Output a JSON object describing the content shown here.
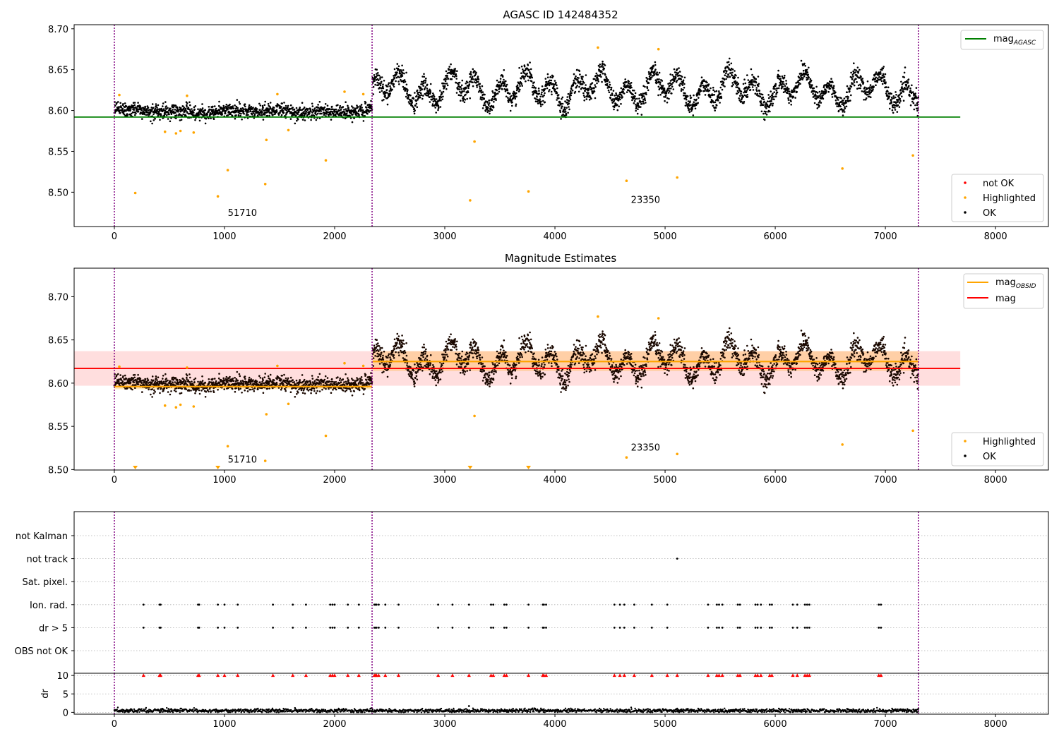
{
  "chart_data": [
    {
      "panel": "top",
      "type": "scatter",
      "title": "AGASC ID 142484352",
      "xlim": [
        -365,
        8480
      ],
      "ylim": [
        8.458,
        8.705
      ],
      "xticks": [
        0,
        1000,
        2000,
        3000,
        4000,
        5000,
        6000,
        7000,
        8000
      ],
      "yticks": [
        8.5,
        8.55,
        8.6,
        8.65,
        8.7
      ],
      "ytick_labels": [
        "8.50",
        "8.55",
        "8.60",
        "8.65",
        "8.70"
      ],
      "obs_boundaries": [
        0,
        2340,
        7300
      ],
      "reference_line": {
        "label": "mag",
        "label_sub": "AGASC",
        "value": 8.592,
        "x_start": -365,
        "x_end": 7680,
        "color": "#008000"
      },
      "segments": [
        {
          "x_start": 0,
          "x_end": 2340,
          "mean": 8.599,
          "noise": 0.0045,
          "wave_amp": 0.002,
          "wave_period": 450
        },
        {
          "x_start": 2345,
          "x_end": 7300,
          "mean": 8.626,
          "noise": 0.006,
          "wave_amp": 0.02,
          "wave_period": 230
        }
      ],
      "highlighted_points": [
        {
          "x": 45,
          "y": 8.619
        },
        {
          "x": 190,
          "y": 8.499
        },
        {
          "x": 460,
          "y": 8.574
        },
        {
          "x": 560,
          "y": 8.572
        },
        {
          "x": 600,
          "y": 8.575
        },
        {
          "x": 660,
          "y": 8.618
        },
        {
          "x": 720,
          "y": 8.573
        },
        {
          "x": 940,
          "y": 8.495
        },
        {
          "x": 1030,
          "y": 8.527
        },
        {
          "x": 1370,
          "y": 8.51
        },
        {
          "x": 1380,
          "y": 8.564
        },
        {
          "x": 1480,
          "y": 8.62
        },
        {
          "x": 1580,
          "y": 8.576
        },
        {
          "x": 1920,
          "y": 8.539
        },
        {
          "x": 2090,
          "y": 8.623
        },
        {
          "x": 2260,
          "y": 8.62
        },
        {
          "x": 3230,
          "y": 8.49
        },
        {
          "x": 3270,
          "y": 8.562
        },
        {
          "x": 3760,
          "y": 8.501
        },
        {
          "x": 4390,
          "y": 8.677
        },
        {
          "x": 4650,
          "y": 8.514
        },
        {
          "x": 4940,
          "y": 8.675
        },
        {
          "x": 5110,
          "y": 8.518
        },
        {
          "x": 6610,
          "y": 8.529
        },
        {
          "x": 7250,
          "y": 8.545
        }
      ],
      "annotations": [
        {
          "text": "51710",
          "x": 1030,
          "y": 8.471
        },
        {
          "text": "23350",
          "x": 4690,
          "y": 8.487
        }
      ],
      "legend_line": {
        "position": "upper right",
        "entries": [
          {
            "label": "mag",
            "sub": "AGASC",
            "color": "#008000"
          }
        ]
      },
      "legend_points": {
        "position": "lower right",
        "entries": [
          {
            "label": "not OK",
            "color": "#ff0000"
          },
          {
            "label": "Highlighted",
            "color": "#ffa500"
          },
          {
            "label": "OK",
            "color": "#000000"
          }
        ]
      }
    },
    {
      "panel": "middle",
      "type": "scatter",
      "title": "Magnitude Estimates",
      "xlim": [
        -365,
        8480
      ],
      "ylim": [
        8.4995,
        8.733
      ],
      "xticks": [
        0,
        1000,
        2000,
        3000,
        4000,
        5000,
        6000,
        7000,
        8000
      ],
      "yticks": [
        8.5,
        8.55,
        8.6,
        8.65,
        8.7
      ],
      "ytick_labels": [
        "8.50",
        "8.55",
        "8.60",
        "8.65",
        "8.70"
      ],
      "obs_boundaries": [
        0,
        2340,
        7300
      ],
      "mag_line": {
        "label": "mag",
        "value": 8.617,
        "band": [
          8.597,
          8.637
        ],
        "x_start": -365,
        "x_end": 7680,
        "color": "#ff0000"
      },
      "obsid_lines": [
        {
          "x_start": 0,
          "x_end": 2340,
          "value": 8.596,
          "band": [
            8.593,
            8.6
          ]
        },
        {
          "x_start": 2345,
          "x_end": 7300,
          "value": 8.625,
          "band": [
            8.614,
            8.637
          ]
        }
      ],
      "highlighted_points": [
        {
          "x": 45,
          "y": 8.619
        },
        {
          "x": 460,
          "y": 8.574
        },
        {
          "x": 560,
          "y": 8.572
        },
        {
          "x": 600,
          "y": 8.575
        },
        {
          "x": 660,
          "y": 8.618
        },
        {
          "x": 720,
          "y": 8.573
        },
        {
          "x": 1030,
          "y": 8.527
        },
        {
          "x": 1370,
          "y": 8.51
        },
        {
          "x": 1380,
          "y": 8.564
        },
        {
          "x": 1480,
          "y": 8.62
        },
        {
          "x": 1580,
          "y": 8.576
        },
        {
          "x": 1920,
          "y": 8.539
        },
        {
          "x": 2090,
          "y": 8.623
        },
        {
          "x": 2260,
          "y": 8.62
        },
        {
          "x": 3270,
          "y": 8.562
        },
        {
          "x": 4390,
          "y": 8.677
        },
        {
          "x": 4650,
          "y": 8.514
        },
        {
          "x": 4940,
          "y": 8.675
        },
        {
          "x": 5110,
          "y": 8.518
        },
        {
          "x": 6610,
          "y": 8.529
        },
        {
          "x": 7250,
          "y": 8.545
        }
      ],
      "clipped_points_x": [
        190,
        940,
        3230,
        3760
      ],
      "annotations": [
        {
          "text": "51710",
          "x": 1030,
          "y": 8.508
        },
        {
          "text": "23350",
          "x": 4690,
          "y": 8.522
        }
      ],
      "legend_line": {
        "position": "upper right",
        "entries": [
          {
            "label": "mag",
            "sub": "OBSID",
            "color": "#ffa500"
          },
          {
            "label": "mag",
            "sub": "",
            "color": "#ff0000"
          }
        ]
      },
      "legend_points": {
        "position": "lower right",
        "entries": [
          {
            "label": "Highlighted",
            "color": "#ffa500"
          },
          {
            "label": "OK",
            "color": "#000000"
          }
        ]
      }
    },
    {
      "panel": "flags",
      "type": "scatter",
      "xlim": [
        -365,
        8480
      ],
      "categories": [
        "not Kalman",
        "not track",
        "Sat. pixel.",
        "Ion. rad.",
        "dr > 5",
        "OBS not OK"
      ],
      "obs_boundaries": [
        0,
        2340,
        7300
      ],
      "events": [
        {
          "category": "not track",
          "x": [
            5110
          ]
        },
        {
          "category": "Ion. rad.",
          "x": [
            265,
            410,
            420,
            760,
            770,
            940,
            1000,
            1120,
            1440,
            1620,
            1740,
            1960,
            1980,
            2000,
            2120,
            2220,
            2360,
            2370,
            2380,
            2400,
            2460,
            2580,
            2940,
            3070,
            3220,
            3420,
            3440,
            3540,
            3560,
            3760,
            3890,
            3900,
            3920,
            4540,
            4590,
            4630,
            4720,
            4880,
            5020,
            5390,
            5470,
            5490,
            5520,
            5660,
            5680,
            5820,
            5840,
            5870,
            5950,
            5970,
            6160,
            6200,
            6270,
            6290,
            6310,
            6940,
            6960
          ]
        },
        {
          "category": "dr > 5",
          "x": [
            265,
            410,
            420,
            760,
            770,
            940,
            1000,
            1120,
            1440,
            1620,
            1740,
            1960,
            1980,
            2000,
            2120,
            2220,
            2360,
            2370,
            2380,
            2400,
            2460,
            2580,
            2940,
            3070,
            3220,
            3420,
            3440,
            3540,
            3560,
            3760,
            3890,
            3900,
            3920,
            4540,
            4590,
            4630,
            4720,
            4880,
            5020,
            5390,
            5470,
            5490,
            5520,
            5660,
            5680,
            5820,
            5840,
            5870,
            5950,
            5970,
            6160,
            6200,
            6270,
            6290,
            6310,
            6940,
            6960
          ]
        }
      ]
    },
    {
      "panel": "dr",
      "type": "scatter",
      "ylabel": "dr",
      "xlim": [
        -365,
        8480
      ],
      "ylim": [
        -0.5,
        10.6
      ],
      "xticks": [
        0,
        1000,
        2000,
        3000,
        4000,
        5000,
        6000,
        7000,
        8000
      ],
      "yticks": [
        0,
        5,
        10
      ],
      "obs_boundaries": [
        0,
        2340,
        7300
      ],
      "baseline": {
        "x_start": 0,
        "x_end": 7300,
        "mean": 0.45,
        "noise": 0.25
      },
      "outlier_points": [
        {
          "x": 3220,
          "y": 1.7
        },
        {
          "x": 5110,
          "y": 1.0
        }
      ],
      "clipped_markers_x": [
        265,
        410,
        420,
        760,
        770,
        940,
        1000,
        1120,
        1440,
        1620,
        1740,
        1960,
        1980,
        2000,
        2120,
        2220,
        2360,
        2370,
        2380,
        2400,
        2460,
        2580,
        2940,
        3070,
        3220,
        3420,
        3440,
        3540,
        3560,
        3760,
        3890,
        3900,
        3920,
        4540,
        4590,
        4630,
        4720,
        4880,
        5020,
        5110,
        5390,
        5470,
        5490,
        5520,
        5660,
        5680,
        5820,
        5840,
        5870,
        5950,
        5970,
        6160,
        6200,
        6270,
        6290,
        6310,
        6940,
        6960
      ]
    }
  ],
  "colors": {
    "ok": "#000000",
    "highlighted": "#ffa500",
    "not_ok": "#ff0000",
    "agasc": "#008000",
    "mag": "#ff0000",
    "obsid": "#ffa500",
    "boundary": "#800080"
  }
}
